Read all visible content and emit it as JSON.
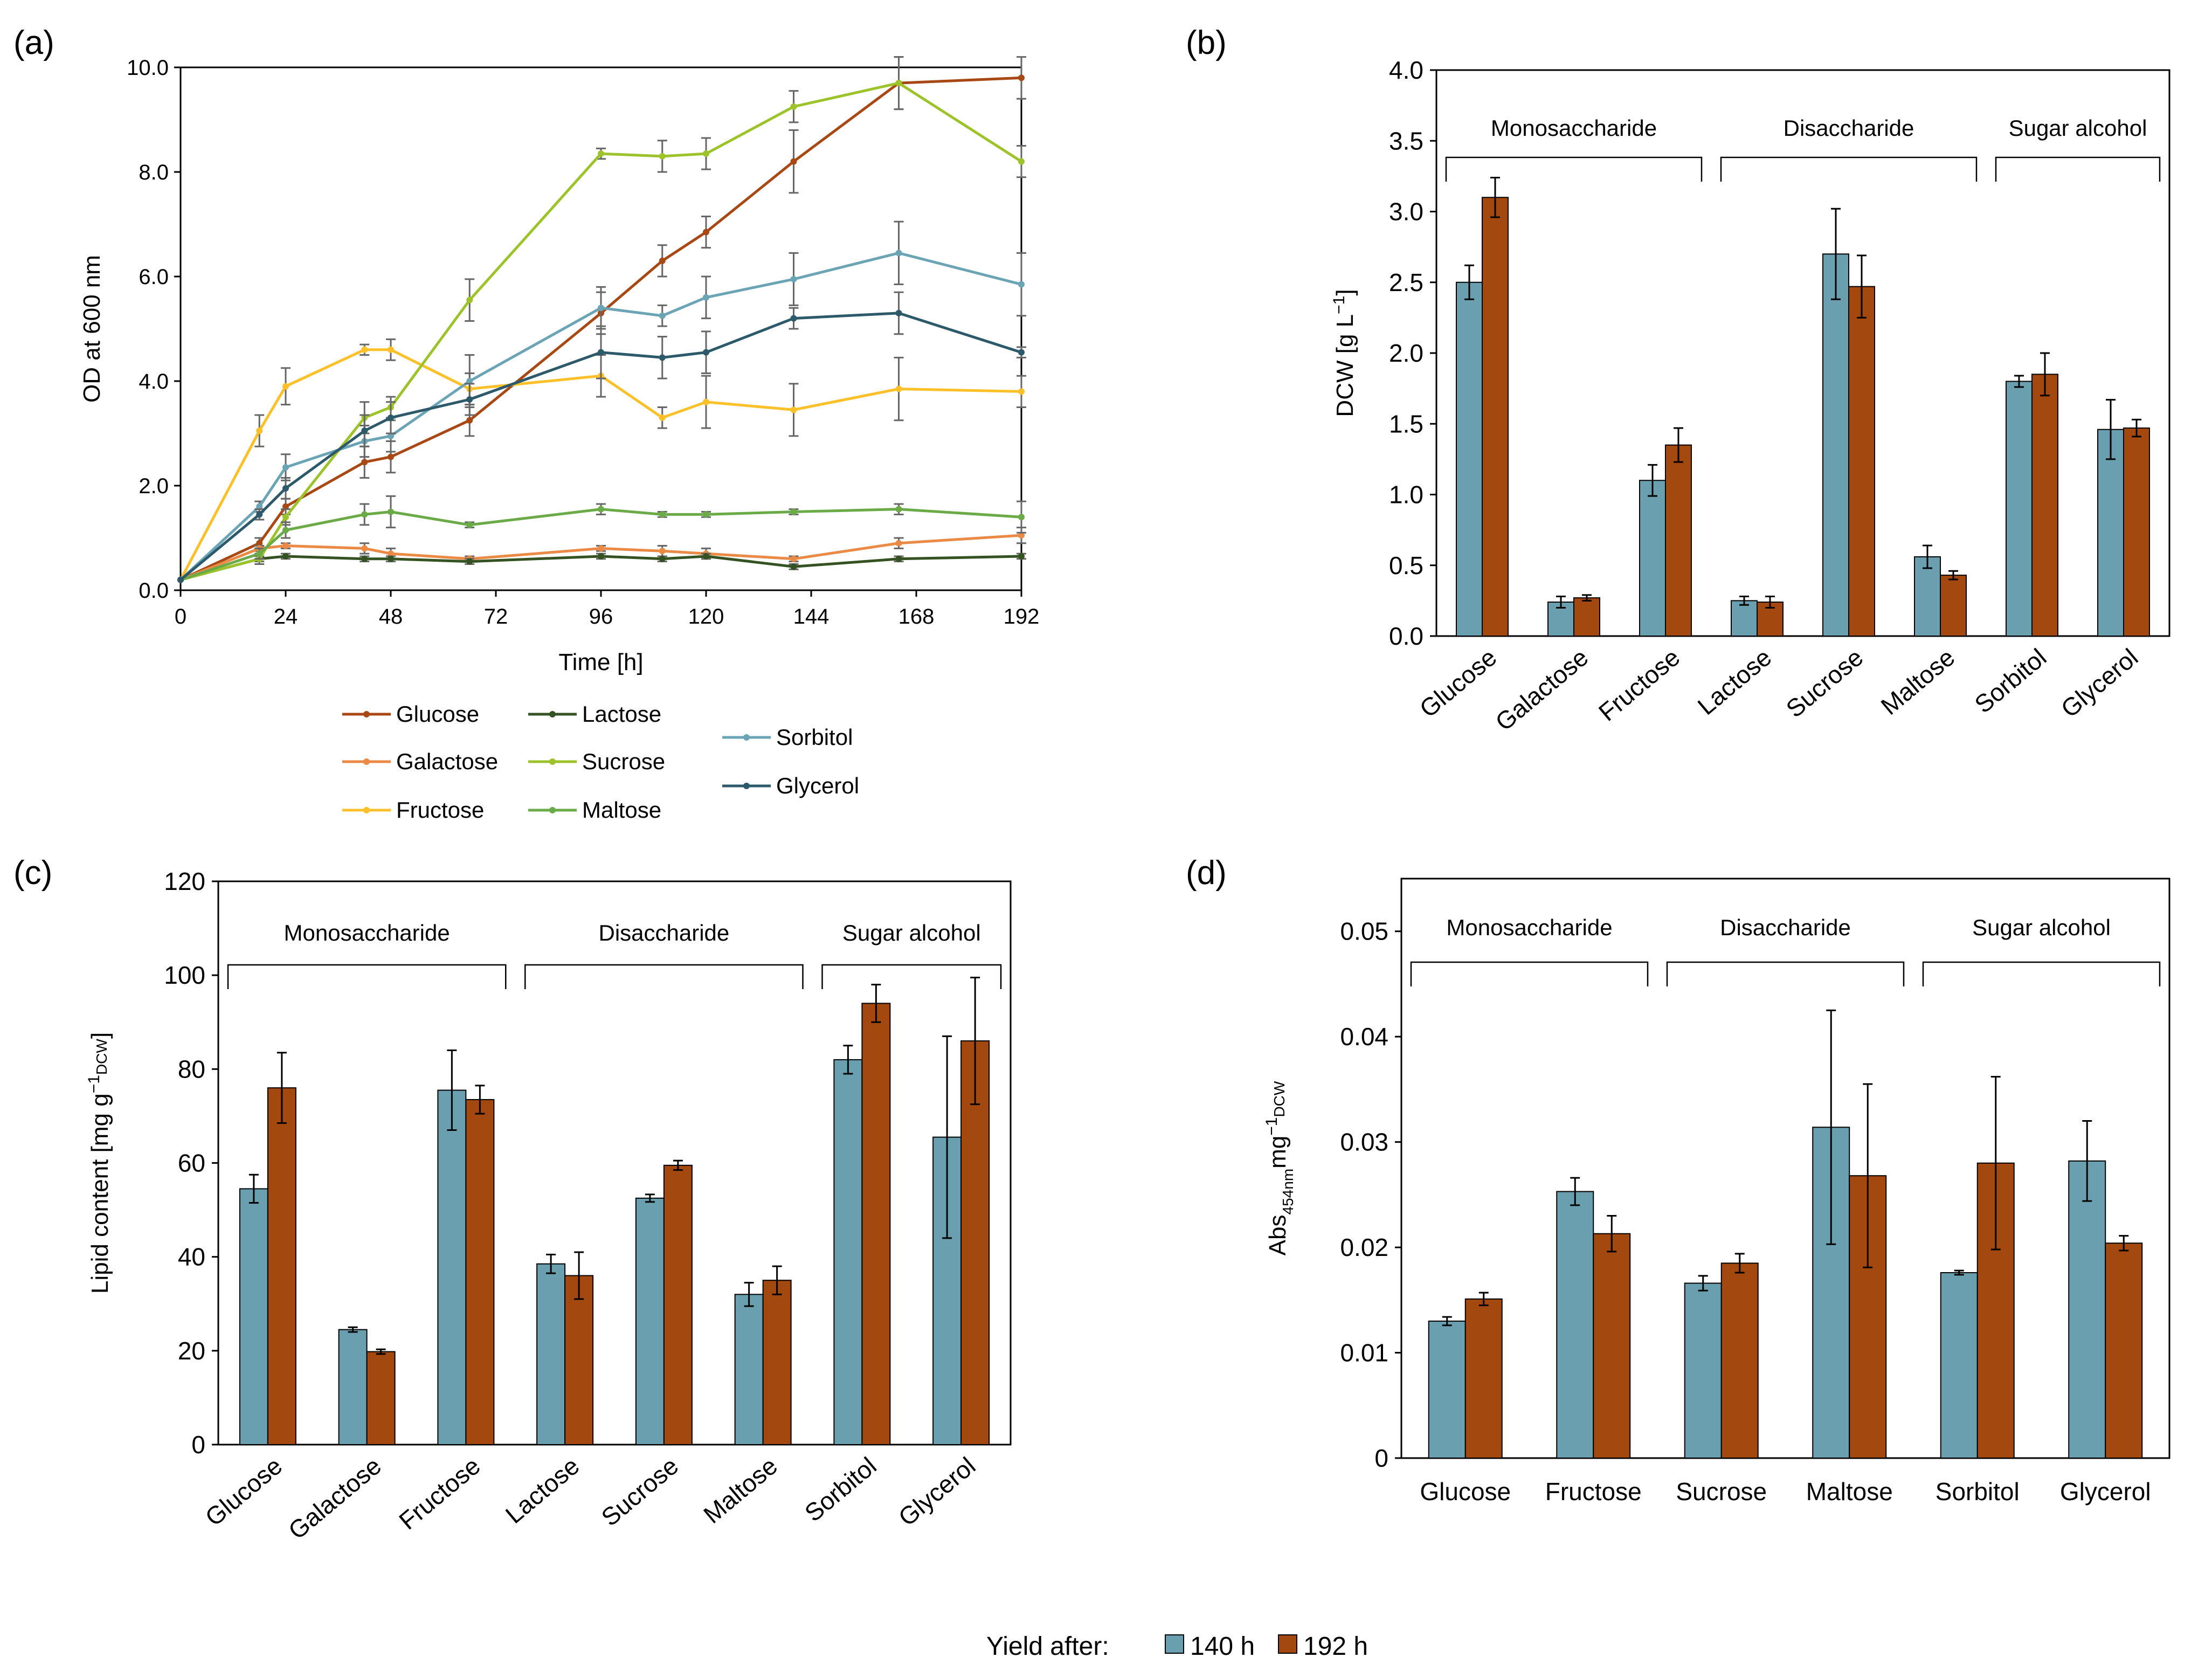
{
  "figure": {
    "legend_a": [
      "Glucose",
      "Lactose",
      "Galactose",
      "Sucrose",
      "Fructose",
      "Maltose",
      "Sorbitol",
      "Glycerol"
    ],
    "bottom_legend": {
      "label": "Yield after:",
      "entries": [
        "140 h",
        "192 h"
      ]
    }
  },
  "colors": {
    "bar_140": "#6a9fb0",
    "bar_192": "#a3480f",
    "Glucose": "#a84915",
    "Galactose": "#ea8a45",
    "Fructose": "#fdc028",
    "Lactose": "#355322",
    "Sucrose": "#9dc32b",
    "Maltose": "#6aab47",
    "Sorbitol": "#6aa4b5",
    "Glycerol": "#2c5a6a"
  },
  "chart_data": [
    {
      "panel": "(a)",
      "type": "line",
      "xlabel": "Time [h]",
      "ylabel": "OD at 600 nm",
      "xlim": [
        0,
        192
      ],
      "ylim": [
        0,
        10
      ],
      "xticks": [
        "0",
        "24",
        "48",
        "72",
        "96",
        "120",
        "144",
        "168",
        "192"
      ],
      "yticks": [
        "0.0",
        "2.0",
        "4.0",
        "6.0",
        "8.0",
        "10.0"
      ],
      "x": [
        0,
        18,
        24,
        42,
        48,
        66,
        96,
        110,
        120,
        140,
        164,
        192
      ],
      "series": [
        {
          "name": "Glucose",
          "values": [
            0.2,
            0.9,
            1.6,
            2.45,
            2.55,
            3.25,
            5.3,
            6.3,
            6.85,
            8.2,
            9.7,
            9.8
          ],
          "errors": [
            0.02,
            0.1,
            0.15,
            0.3,
            0.3,
            0.3,
            0.4,
            0.3,
            0.3,
            0.6,
            0.5,
            0.4
          ]
        },
        {
          "name": "Galactose",
          "values": [
            0.2,
            0.8,
            0.85,
            0.8,
            0.7,
            0.6,
            0.8,
            0.75,
            0.7,
            0.6,
            0.9,
            1.05
          ],
          "errors": [
            0.02,
            0.05,
            0.05,
            0.1,
            0.1,
            0.05,
            0.05,
            0.1,
            0.1,
            0.05,
            0.1,
            0.15
          ]
        },
        {
          "name": "Fructose",
          "values": [
            0.2,
            3.05,
            3.9,
            4.6,
            4.6,
            3.85,
            4.1,
            3.3,
            3.6,
            3.45,
            3.85,
            3.8
          ],
          "errors": [
            0.02,
            0.3,
            0.35,
            0.1,
            0.2,
            0.3,
            0.4,
            0.2,
            0.5,
            0.5,
            0.6,
            0.3
          ]
        },
        {
          "name": "Lactose",
          "values": [
            0.2,
            0.6,
            0.65,
            0.6,
            0.6,
            0.55,
            0.65,
            0.6,
            0.65,
            0.45,
            0.6,
            0.65
          ],
          "errors": [
            0.02,
            0.05,
            0.05,
            0.05,
            0.05,
            0.05,
            0.05,
            0.05,
            0.05,
            0.05,
            0.05,
            0.05
          ]
        },
        {
          "name": "Sucrose",
          "values": [
            0.2,
            0.6,
            1.4,
            3.3,
            3.5,
            5.55,
            8.35,
            8.3,
            8.35,
            9.25,
            9.7,
            8.2
          ],
          "errors": [
            0.02,
            0.1,
            0.15,
            0.3,
            0.2,
            0.4,
            0.1,
            0.3,
            0.3,
            0.3,
            0.5,
            0.3
          ]
        },
        {
          "name": "Maltose",
          "values": [
            0.2,
            0.7,
            1.15,
            1.45,
            1.5,
            1.25,
            1.55,
            1.45,
            1.45,
            1.5,
            1.55,
            1.4
          ],
          "errors": [
            0.02,
            0.1,
            0.15,
            0.2,
            0.3,
            0.05,
            0.1,
            0.05,
            0.05,
            0.05,
            0.1,
            0.3
          ]
        },
        {
          "name": "Sorbitol",
          "values": [
            0.2,
            1.6,
            2.35,
            2.85,
            2.95,
            4.0,
            5.4,
            5.25,
            5.6,
            5.95,
            6.45,
            5.85
          ],
          "errors": [
            0.02,
            0.1,
            0.25,
            0.3,
            0.3,
            0.5,
            0.4,
            0.2,
            0.4,
            0.5,
            0.6,
            0.6
          ]
        },
        {
          "name": "Glycerol",
          "values": [
            0.2,
            1.45,
            1.95,
            3.05,
            3.3,
            3.65,
            4.55,
            4.45,
            4.55,
            5.2,
            5.3,
            4.55
          ],
          "errors": [
            0.02,
            0.1,
            0.2,
            0.3,
            0.3,
            0.3,
            0.5,
            0.4,
            0.4,
            0.2,
            0.4,
            0.1
          ]
        }
      ]
    },
    {
      "panel": "(b)",
      "type": "bar",
      "ylabel": "DCW [g L",
      "ylabel_sup": "−1",
      "ylabel_end": "]",
      "ylim": [
        0,
        4
      ],
      "yticks": [
        "0.0",
        "0.5",
        "1.0",
        "1.5",
        "2.0",
        "2.5",
        "3.0",
        "3.5",
        "4.0"
      ],
      "categories": [
        "Glucose",
        "Galactose",
        "Fructose",
        "Lactose",
        "Sucrose",
        "Maltose",
        "Sorbitol",
        "Glycerol"
      ],
      "series": [
        {
          "name": "140 h",
          "values": [
            2.5,
            0.24,
            1.1,
            0.25,
            2.7,
            0.56,
            1.8,
            1.46
          ],
          "errors": [
            0.12,
            0.04,
            0.11,
            0.03,
            0.32,
            0.08,
            0.04,
            0.21
          ]
        },
        {
          "name": "192 h",
          "values": [
            3.1,
            0.27,
            1.35,
            0.24,
            2.47,
            0.43,
            1.85,
            1.47
          ],
          "errors": [
            0.14,
            0.02,
            0.12,
            0.04,
            0.22,
            0.03,
            0.15,
            0.06
          ]
        }
      ],
      "groups": [
        {
          "label": "Monosaccharide",
          "from": 0,
          "to": 2
        },
        {
          "label": "Disaccharide",
          "from": 3,
          "to": 5
        },
        {
          "label": "Sugar alcohol",
          "from": 6,
          "to": 7
        }
      ]
    },
    {
      "panel": "(c)",
      "type": "bar",
      "ylabel": "Lipid content [mg g",
      "ylabel_sup": "−1",
      "ylabel_sub": "DCW",
      "ylabel_end": "]",
      "ylim": [
        0,
        120
      ],
      "yticks": [
        "0",
        "20",
        "40",
        "60",
        "80",
        "100",
        "120"
      ],
      "categories": [
        "Glucose",
        "Galactose",
        "Fructose",
        "Lactose",
        "Sucrose",
        "Maltose",
        "Sorbitol",
        "Glycerol"
      ],
      "series": [
        {
          "name": "140 h",
          "values": [
            54.5,
            24.5,
            75.5,
            38.5,
            52.5,
            32.0,
            82.0,
            65.5
          ],
          "errors": [
            3.0,
            0.5,
            8.5,
            2.0,
            0.8,
            2.5,
            3.0,
            21.5
          ]
        },
        {
          "name": "192 h",
          "values": [
            76.0,
            19.8,
            73.5,
            36.0,
            59.5,
            35.0,
            94.0,
            86.0
          ],
          "errors": [
            7.5,
            0.5,
            3.0,
            5.0,
            1.0,
            3.0,
            4.0,
            13.5
          ]
        }
      ],
      "groups": [
        {
          "label": "Monosaccharide",
          "from": 0,
          "to": 2
        },
        {
          "label": "Disaccharide",
          "from": 3,
          "to": 5
        },
        {
          "label": "Sugar alcohol",
          "from": 6,
          "to": 7
        }
      ]
    },
    {
      "panel": "(d)",
      "type": "bar",
      "ylabel": "Abs",
      "ylabel_sub": "454nm",
      "ylabel_mid": "mg",
      "ylabel_sup": "−1",
      "ylabel_sub2": "DCW",
      "ylim": [
        0,
        0.055
      ],
      "yticks": [
        "0",
        "0.01",
        "0.02",
        "0.03",
        "0.04",
        "0.05"
      ],
      "categories": [
        "Glucose",
        "Fructose",
        "Sucrose",
        "Maltose",
        "Sorbitol",
        "Glycerol"
      ],
      "series": [
        {
          "name": "140 h",
          "values": [
            0.013,
            0.0253,
            0.0166,
            0.0314,
            0.0176,
            0.0282
          ],
          "errors": [
            0.0004,
            0.0013,
            0.0007,
            0.0111,
            0.0002,
            0.0038
          ]
        },
        {
          "name": "192 h",
          "values": [
            0.0151,
            0.0213,
            0.0185,
            0.0268,
            0.028,
            0.0204
          ],
          "errors": [
            0.0006,
            0.0017,
            0.0009,
            0.0087,
            0.0082,
            0.0007
          ]
        }
      ],
      "groups": [
        {
          "label": "Monosaccharide",
          "from": 0,
          "to": 1
        },
        {
          "label": "Disaccharide",
          "from": 2,
          "to": 3
        },
        {
          "label": "Sugar alcohol",
          "from": 4,
          "to": 5
        }
      ]
    }
  ]
}
